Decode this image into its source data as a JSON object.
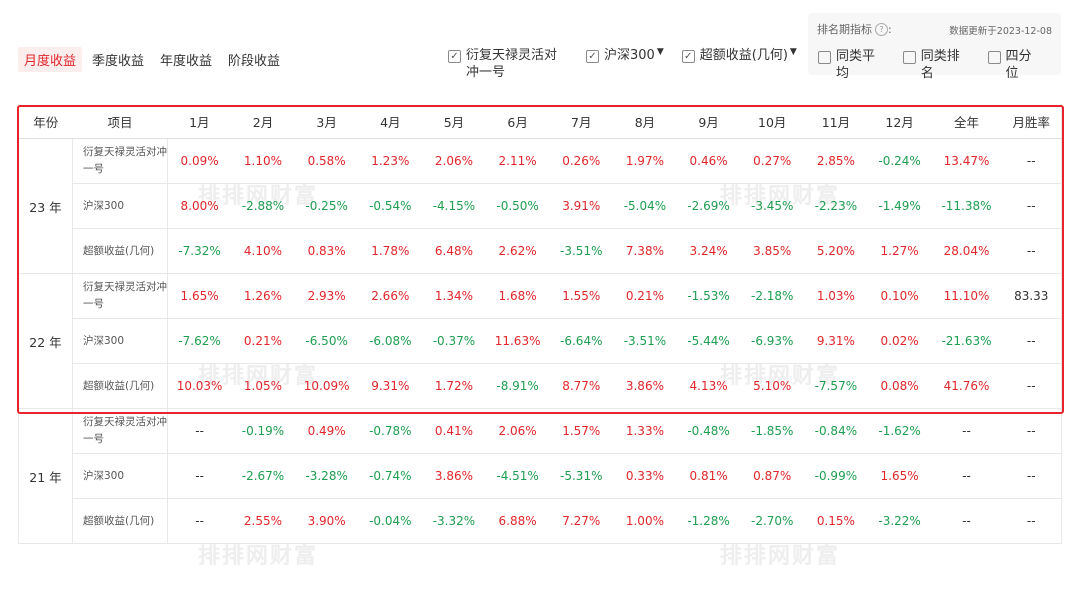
{
  "tabs": [
    {
      "label": "月度收益",
      "active": true
    },
    {
      "label": "季度收益",
      "active": false
    },
    {
      "label": "年度收益",
      "active": false
    },
    {
      "label": "阶段收益",
      "active": false
    }
  ],
  "filters": {
    "fund": {
      "label": "衍复天禄灵活对冲一号",
      "checked": true
    },
    "index": {
      "label": "沪深300",
      "checked": true
    },
    "excess": {
      "label": "超额收益(几何)",
      "checked": true
    }
  },
  "rank_panel": {
    "title": "排名期指标",
    "update_text": "数据更新于2023-12-08",
    "options": [
      {
        "label": "同类平均",
        "checked": false
      },
      {
        "label": "同类排名",
        "checked": false
      },
      {
        "label": "四分位",
        "checked": false
      }
    ]
  },
  "watermark": "排排网财富",
  "table": {
    "headers": [
      "年份",
      "项目",
      "1月",
      "2月",
      "3月",
      "4月",
      "5月",
      "6月",
      "7月",
      "8月",
      "9月",
      "10月",
      "11月",
      "12月",
      "全年",
      "月胜率"
    ],
    "groups": [
      {
        "year": "23 年",
        "rows": [
          {
            "item": "衍复天禄灵活对冲一号",
            "values": [
              "0.09%",
              "1.10%",
              "0.58%",
              "1.23%",
              "2.06%",
              "2.11%",
              "0.26%",
              "1.97%",
              "0.46%",
              "0.27%",
              "2.85%",
              "-0.24%",
              "13.47%",
              "--"
            ]
          },
          {
            "item": "沪深300",
            "values": [
              "8.00%",
              "-2.88%",
              "-0.25%",
              "-0.54%",
              "-4.15%",
              "-0.50%",
              "3.91%",
              "-5.04%",
              "-2.69%",
              "-3.45%",
              "-2.23%",
              "-1.49%",
              "-11.38%",
              "--"
            ]
          },
          {
            "item": "超额收益(几何)",
            "values": [
              "-7.32%",
              "4.10%",
              "0.83%",
              "1.78%",
              "6.48%",
              "2.62%",
              "-3.51%",
              "7.38%",
              "3.24%",
              "3.85%",
              "5.20%",
              "1.27%",
              "28.04%",
              "--"
            ]
          }
        ]
      },
      {
        "year": "22 年",
        "rows": [
          {
            "item": "衍复天禄灵活对冲一号",
            "values": [
              "1.65%",
              "1.26%",
              "2.93%",
              "2.66%",
              "1.34%",
              "1.68%",
              "1.55%",
              "0.21%",
              "-1.53%",
              "-2.18%",
              "1.03%",
              "0.10%",
              "11.10%",
              "83.33"
            ]
          },
          {
            "item": "沪深300",
            "values": [
              "-7.62%",
              "0.21%",
              "-6.50%",
              "-6.08%",
              "-0.37%",
              "11.63%",
              "-6.64%",
              "-3.51%",
              "-5.44%",
              "-6.93%",
              "9.31%",
              "0.02%",
              "-21.63%",
              "--"
            ]
          },
          {
            "item": "超额收益(几何)",
            "values": [
              "10.03%",
              "1.05%",
              "10.09%",
              "9.31%",
              "1.72%",
              "-8.91%",
              "8.77%",
              "3.86%",
              "4.13%",
              "5.10%",
              "-7.57%",
              "0.08%",
              "41.76%",
              "--"
            ]
          }
        ]
      },
      {
        "year": "21 年",
        "rows": [
          {
            "item": "衍复天禄灵活对冲一号",
            "values": [
              "--",
              "-0.19%",
              "0.49%",
              "-0.78%",
              "0.41%",
              "2.06%",
              "1.57%",
              "1.33%",
              "-0.48%",
              "-1.85%",
              "-0.84%",
              "-1.62%",
              "--",
              "--"
            ]
          },
          {
            "item": "沪深300",
            "values": [
              "--",
              "-2.67%",
              "-3.28%",
              "-0.74%",
              "3.86%",
              "-4.51%",
              "-5.31%",
              "0.33%",
              "0.81%",
              "0.87%",
              "-0.99%",
              "1.65%",
              "--",
              "--"
            ]
          },
          {
            "item": "超额收益(几何)",
            "values": [
              "--",
              "2.55%",
              "3.90%",
              "-0.04%",
              "-3.32%",
              "6.88%",
              "7.27%",
              "1.00%",
              "-1.28%",
              "-2.70%",
              "0.15%",
              "-3.22%",
              "--",
              "--"
            ]
          }
        ]
      }
    ]
  },
  "colors": {
    "positive": "#e0262b",
    "negative": "#1e9e50",
    "highlight": "#e8232b",
    "active_tab": "#e0262b"
  }
}
